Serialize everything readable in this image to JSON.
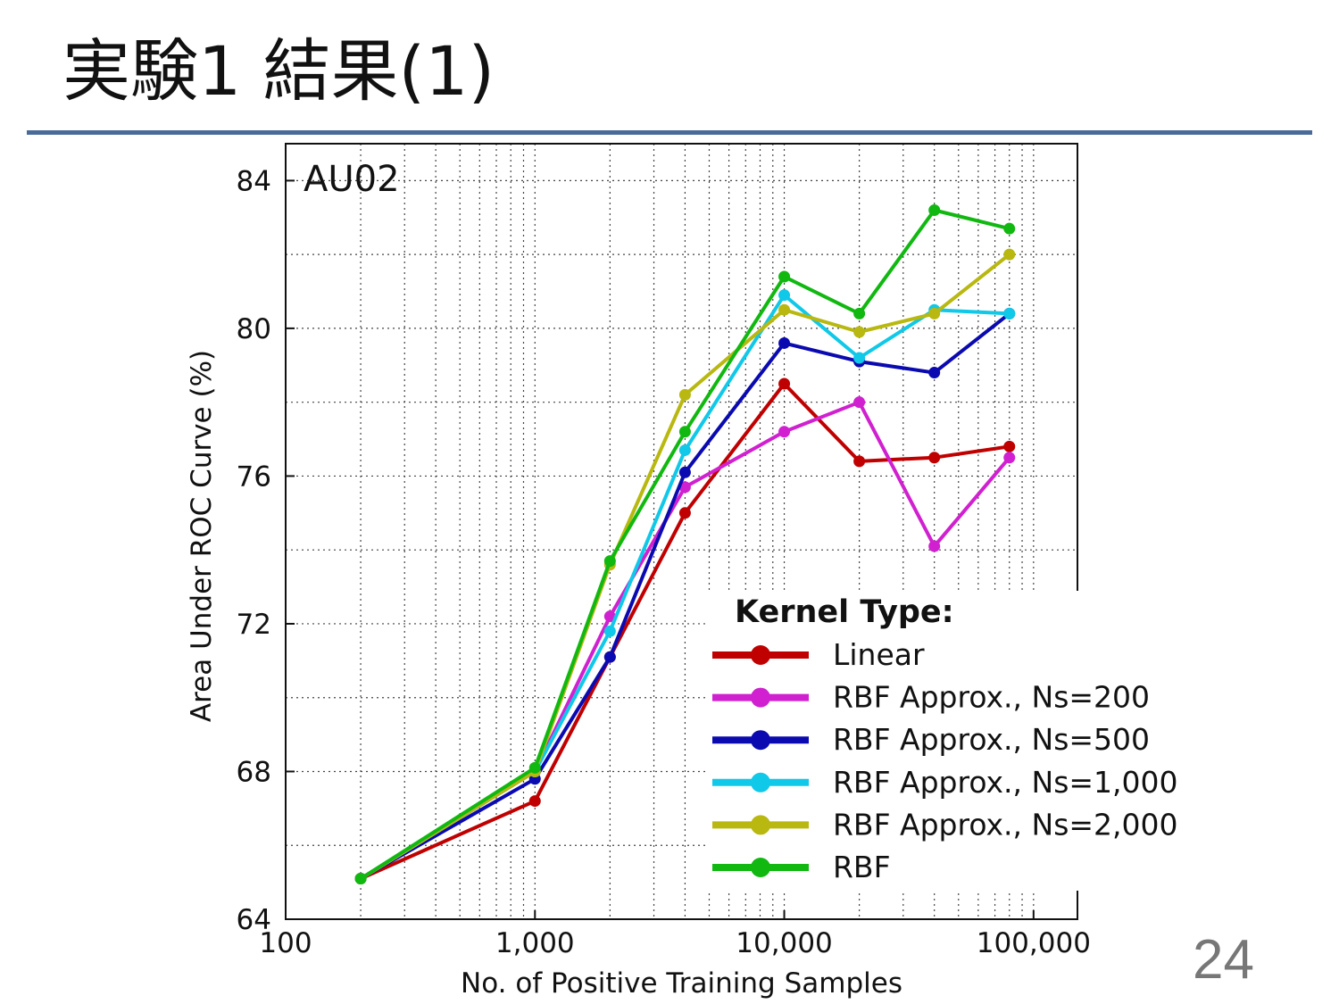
{
  "slide": {
    "title": "実験1 結果(1)",
    "page_number": "24",
    "rule_color": "#4a6a9a"
  },
  "chart_data": {
    "type": "line",
    "panel_label": "AU02",
    "xlabel": "No. of Positive Training Samples",
    "ylabel": "Area Under ROC Curve (%)",
    "x_scale": "log",
    "xlim": [
      100,
      150000
    ],
    "ylim": [
      64,
      85
    ],
    "x_ticks": [
      100,
      1000,
      10000,
      100000
    ],
    "x_tick_labels": [
      "100",
      "1,000",
      "10,000",
      "100,000"
    ],
    "y_ticks": [
      64,
      68,
      72,
      76,
      80,
      84
    ],
    "y_tick_labels": [
      "64",
      "68",
      "72",
      "76",
      "80",
      "84"
    ],
    "grid": true,
    "legend": {
      "title": "Kernel Type:",
      "placement": "bottom-right"
    },
    "x": [
      200,
      1000,
      2000,
      4000,
      10000,
      20000,
      40000,
      80000
    ],
    "series": [
      {
        "name": "Linear",
        "color": "#c00000",
        "values": [
          65.1,
          67.2,
          71.1,
          75.0,
          78.5,
          76.4,
          76.5,
          76.8
        ]
      },
      {
        "name": "RBF Approx., Ns=200",
        "color": "#d020d0",
        "values": [
          65.1,
          68.0,
          72.2,
          75.7,
          77.2,
          78.0,
          74.1,
          76.5
        ]
      },
      {
        "name": "RBF Approx., Ns=500",
        "color": "#0a0ab0",
        "values": [
          65.1,
          67.8,
          71.1,
          76.1,
          79.6,
          79.1,
          78.8,
          80.4
        ]
      },
      {
        "name": "RBF Approx., Ns=1,000",
        "color": "#10c8e8",
        "values": [
          65.1,
          68.0,
          71.8,
          76.7,
          80.9,
          79.2,
          80.5,
          80.4
        ]
      },
      {
        "name": "RBF Approx., Ns=2,000",
        "color": "#b8b810",
        "values": [
          65.1,
          68.0,
          73.6,
          78.2,
          80.5,
          79.9,
          80.4,
          82.0
        ]
      },
      {
        "name": "RBF",
        "color": "#10b810",
        "values": [
          65.1,
          68.1,
          73.7,
          77.2,
          81.4,
          80.4,
          83.2,
          82.7
        ]
      }
    ]
  }
}
